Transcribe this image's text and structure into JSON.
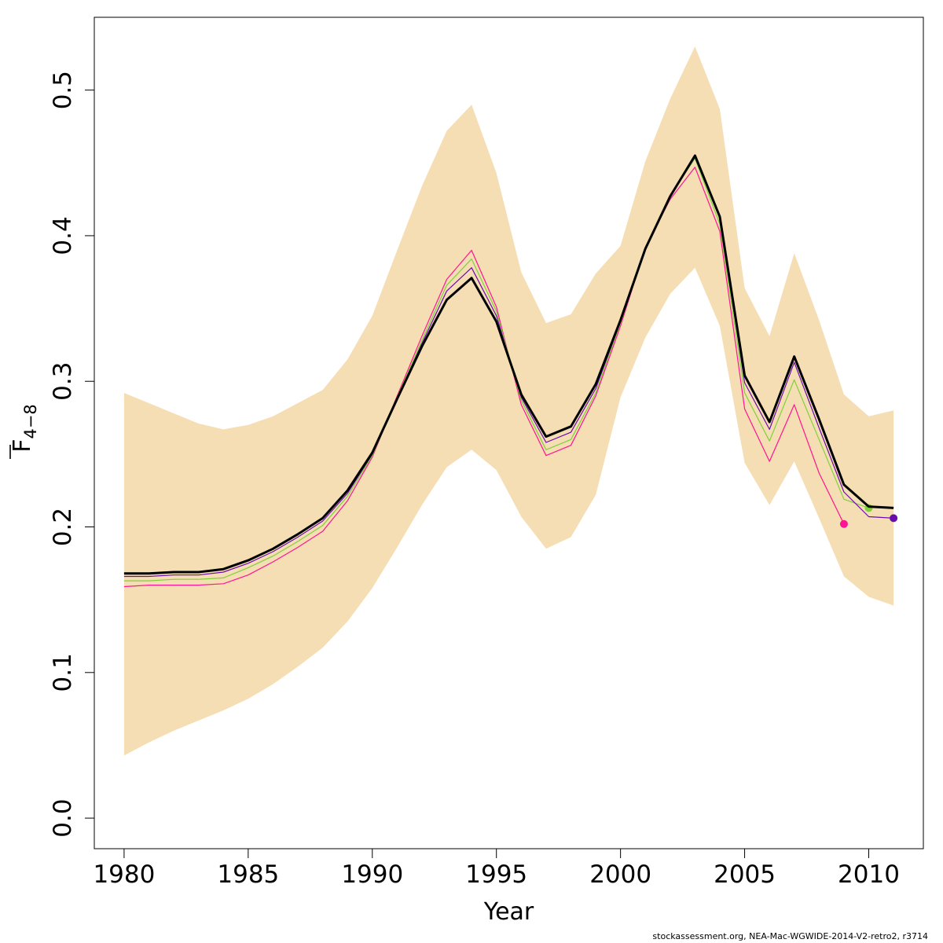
{
  "chart_data": {
    "type": "line",
    "xlabel": "Year",
    "ylabel_main": "F",
    "ylabel_sub": "4−8",
    "xlim": [
      1978.8,
      2012.2
    ],
    "ylim": [
      -0.021,
      0.55
    ],
    "x_ticks": [
      1980,
      1985,
      1990,
      1995,
      2000,
      2005,
      2010
    ],
    "x_tick_labels": [
      "1980",
      "1985",
      "1990",
      "1995",
      "2000",
      "2005",
      "2010"
    ],
    "y_ticks": [
      0.0,
      0.1,
      0.2,
      0.3,
      0.4,
      0.5
    ],
    "y_tick_labels": [
      "0.0",
      "0.1",
      "0.2",
      "0.3",
      "0.4",
      "0.5"
    ],
    "grid": false,
    "legend": "none",
    "band": {
      "color": "#f5deb3",
      "x": [
        1980,
        1981,
        1982,
        1983,
        1984,
        1985,
        1986,
        1987,
        1988,
        1989,
        1990,
        1991,
        1992,
        1993,
        1994,
        1995,
        1996,
        1997,
        1998,
        1999,
        2000,
        2001,
        2002,
        2003,
        2004,
        2005,
        2006,
        2007,
        2008,
        2009,
        2010,
        2011
      ],
      "upper": [
        0.292,
        0.285,
        0.278,
        0.271,
        0.267,
        0.27,
        0.276,
        0.285,
        0.294,
        0.315,
        0.345,
        0.39,
        0.434,
        0.472,
        0.49,
        0.443,
        0.375,
        0.34,
        0.346,
        0.374,
        0.393,
        0.451,
        0.494,
        0.53,
        0.487,
        0.364,
        0.331,
        0.388,
        0.342,
        0.291,
        0.276,
        0.28
      ],
      "lower": [
        0.043,
        0.052,
        0.06,
        0.067,
        0.074,
        0.082,
        0.092,
        0.104,
        0.117,
        0.135,
        0.158,
        0.186,
        0.215,
        0.241,
        0.253,
        0.239,
        0.207,
        0.185,
        0.193,
        0.222,
        0.289,
        0.33,
        0.36,
        0.378,
        0.338,
        0.244,
        0.215,
        0.245,
        0.206,
        0.166,
        0.152,
        0.146
      ]
    },
    "series": [
      {
        "color": "#000000",
        "width": 3,
        "x": [
          1980,
          1981,
          1982,
          1983,
          1984,
          1985,
          1986,
          1987,
          1988,
          1989,
          1990,
          1991,
          1992,
          1993,
          1994,
          1995,
          1996,
          1997,
          1998,
          1999,
          2000,
          2001,
          2002,
          2003,
          2004,
          2005,
          2006,
          2007,
          2008,
          2009,
          2010,
          2011
        ],
        "values": [
          0.168,
          0.168,
          0.169,
          0.169,
          0.171,
          0.177,
          0.185,
          0.195,
          0.206,
          0.225,
          0.251,
          0.288,
          0.324,
          0.356,
          0.371,
          0.341,
          0.291,
          0.262,
          0.269,
          0.298,
          0.342,
          0.391,
          0.427,
          0.455,
          0.413,
          0.304,
          0.272,
          0.317,
          0.274,
          0.229,
          0.214,
          0.213
        ],
        "end_point": false
      },
      {
        "color": "#6a0dad",
        "width": 1.2,
        "x": [
          1980,
          1981,
          1982,
          1983,
          1984,
          1985,
          1986,
          1987,
          1988,
          1989,
          1990,
          1991,
          1992,
          1993,
          1994,
          1995,
          1996,
          1997,
          1998,
          1999,
          2000,
          2001,
          2002,
          2003,
          2004,
          2005,
          2006,
          2007,
          2008,
          2009,
          2010,
          2011
        ],
        "values": [
          0.166,
          0.166,
          0.167,
          0.167,
          0.169,
          0.175,
          0.183,
          0.193,
          0.204,
          0.223,
          0.25,
          0.288,
          0.326,
          0.362,
          0.378,
          0.345,
          0.289,
          0.258,
          0.265,
          0.295,
          0.341,
          0.391,
          0.427,
          0.454,
          0.412,
          0.299,
          0.267,
          0.313,
          0.268,
          0.224,
          0.207,
          0.206
        ],
        "end_point": true
      },
      {
        "color": "#7fd13b",
        "width": 1.2,
        "x": [
          1980,
          1981,
          1982,
          1983,
          1984,
          1985,
          1986,
          1987,
          1988,
          1989,
          1990,
          1991,
          1992,
          1993,
          1994,
          1995,
          1996,
          1997,
          1998,
          1999,
          2000,
          2001,
          2002,
          2003,
          2004,
          2005,
          2006,
          2007,
          2008,
          2009,
          2010
        ],
        "values": [
          0.163,
          0.163,
          0.164,
          0.164,
          0.165,
          0.172,
          0.18,
          0.19,
          0.201,
          0.221,
          0.249,
          0.289,
          0.328,
          0.366,
          0.384,
          0.348,
          0.287,
          0.253,
          0.26,
          0.292,
          0.34,
          0.391,
          0.428,
          0.453,
          0.408,
          0.292,
          0.259,
          0.301,
          0.26,
          0.219,
          0.213
        ],
        "end_point": true
      },
      {
        "color": "#ff1493",
        "width": 1.2,
        "x": [
          1980,
          1981,
          1982,
          1983,
          1984,
          1985,
          1986,
          1987,
          1988,
          1989,
          1990,
          1991,
          1992,
          1993,
          1994,
          1995,
          1996,
          1997,
          1998,
          1999,
          2000,
          2001,
          2002,
          2003,
          2004,
          2005,
          2006,
          2007,
          2008,
          2009
        ],
        "values": [
          0.159,
          0.16,
          0.16,
          0.16,
          0.161,
          0.167,
          0.176,
          0.186,
          0.197,
          0.218,
          0.248,
          0.29,
          0.331,
          0.37,
          0.39,
          0.351,
          0.284,
          0.249,
          0.256,
          0.29,
          0.338,
          0.392,
          0.425,
          0.447,
          0.403,
          0.281,
          0.245,
          0.284,
          0.237,
          0.202
        ],
        "end_point": true
      }
    ]
  },
  "footer": "stockassessment.org, NEA-Mac-WGWIDE-2014-V2-retro2, r3714"
}
